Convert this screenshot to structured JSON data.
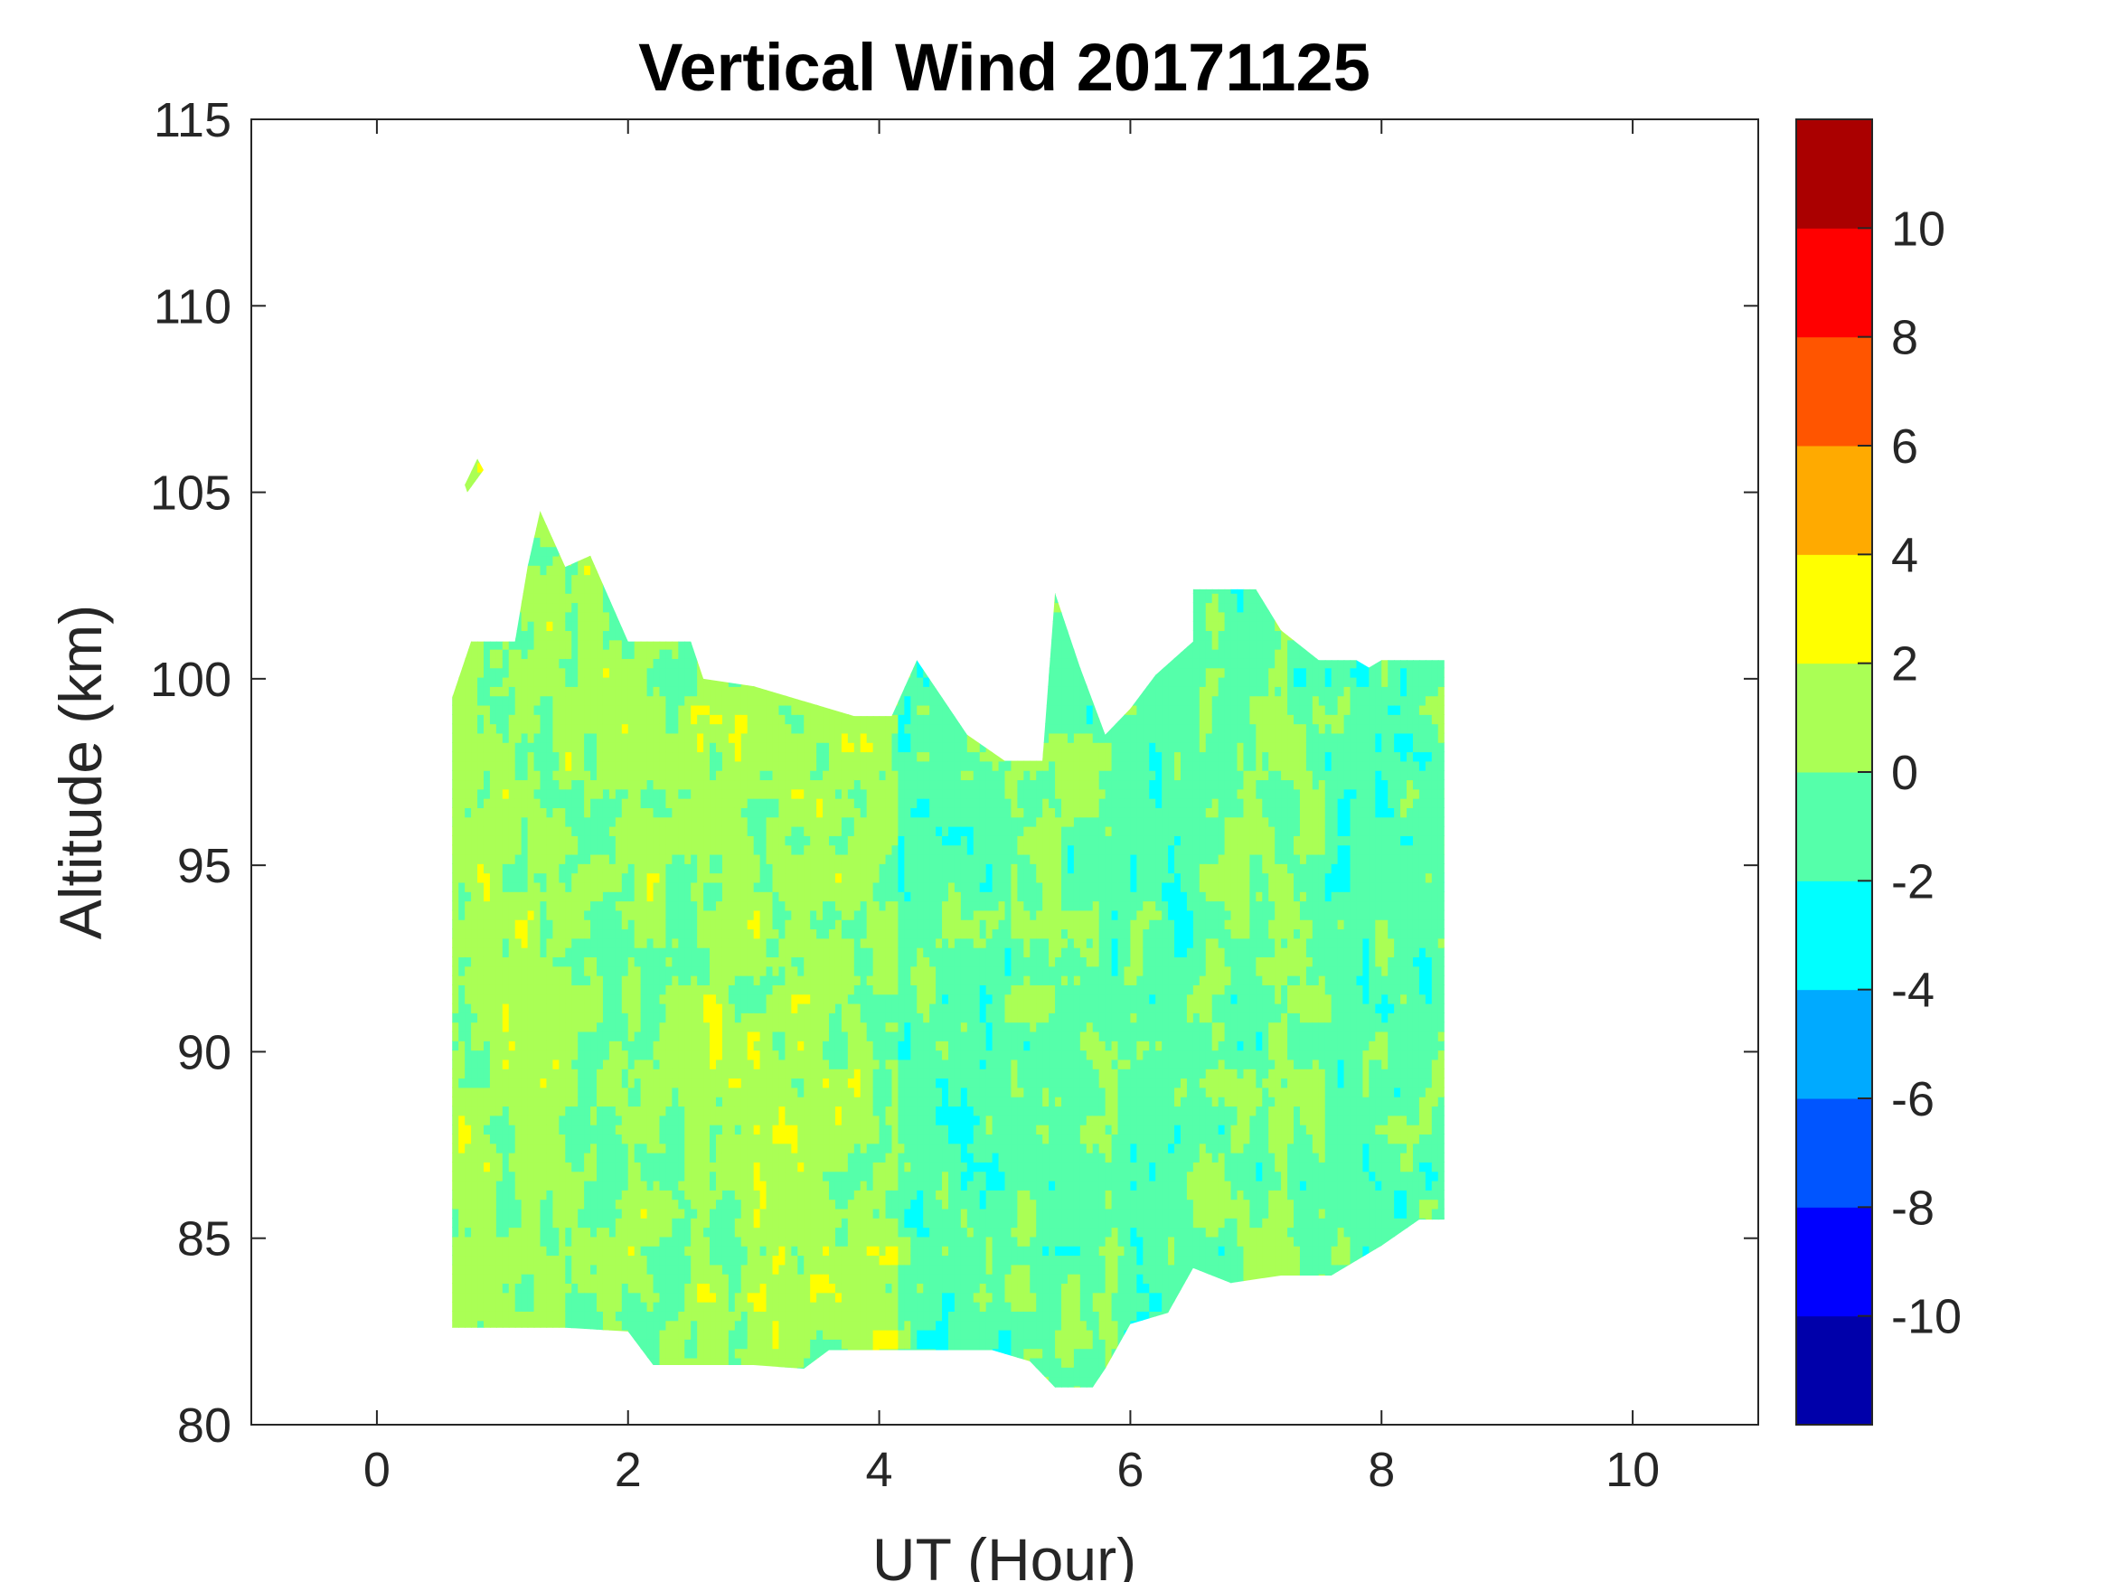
{
  "chart_data": {
    "type": "heatmap",
    "subtype": "filled-contour",
    "title": "Vertical Wind 20171125",
    "xlabel": "UT (Hour)",
    "ylabel": "Altitude (km)",
    "xlim": [
      -1,
      11
    ],
    "ylim": [
      80,
      115
    ],
    "xticks": [
      "0",
      "2",
      "4",
      "6",
      "8",
      "10"
    ],
    "xtick_values": [
      0,
      2,
      4,
      6,
      8,
      10
    ],
    "yticks": [
      "80",
      "85",
      "90",
      "95",
      "100",
      "105",
      "110",
      "115"
    ],
    "ytick_values": [
      80,
      85,
      90,
      95,
      100,
      105,
      110,
      115
    ],
    "colorbar": {
      "range": [
        -12,
        12
      ],
      "levels": [
        -12,
        -10,
        -8,
        -6,
        -4,
        -2,
        0,
        2,
        4,
        6,
        8,
        10,
        12
      ],
      "colors": [
        "#0000aa",
        "#0000ff",
        "#0055ff",
        "#00aaff",
        "#00ffff",
        "#55ffaa",
        "#aaff55",
        "#ffff00",
        "#ffaa00",
        "#ff5500",
        "#ff0000",
        "#aa0000"
      ],
      "tick_values": [
        -10,
        -8,
        -6,
        -4,
        -2,
        0,
        2,
        4,
        6,
        8,
        10
      ],
      "tick_labels": [
        "-10",
        "-8",
        "-6",
        "-4",
        "-2",
        "0",
        "2",
        "4",
        "6",
        "8",
        "10"
      ]
    },
    "data_coverage_outline": [
      [
        0.6,
        99.5
      ],
      [
        0.75,
        101
      ],
      [
        1.1,
        101
      ],
      [
        1.2,
        103
      ],
      [
        1.3,
        104.5
      ],
      [
        1.5,
        103
      ],
      [
        1.7,
        103.3
      ],
      [
        2.0,
        101
      ],
      [
        2.5,
        101
      ],
      [
        2.6,
        100
      ],
      [
        3.0,
        99.8
      ],
      [
        3.3,
        99.5
      ],
      [
        3.8,
        99
      ],
      [
        4.1,
        99
      ],
      [
        4.3,
        100.5
      ],
      [
        4.7,
        98.5
      ],
      [
        5.0,
        97.8
      ],
      [
        5.3,
        97.8
      ],
      [
        5.4,
        102.3
      ],
      [
        5.6,
        100.3
      ],
      [
        5.8,
        98.5
      ],
      [
        6.0,
        99.2
      ],
      [
        6.2,
        100.1
      ],
      [
        6.5,
        101
      ],
      [
        6.5,
        102.4
      ],
      [
        7.0,
        102.4
      ],
      [
        7.2,
        101.3
      ],
      [
        7.5,
        100.5
      ],
      [
        7.8,
        100.5
      ],
      [
        7.9,
        100.3
      ],
      [
        8.0,
        100.5
      ],
      [
        8.5,
        100.5
      ],
      [
        8.5,
        85.5
      ],
      [
        8.3,
        85.5
      ],
      [
        8.0,
        84.8
      ],
      [
        7.6,
        84.0
      ],
      [
        7.2,
        84.0
      ],
      [
        6.8,
        83.8
      ],
      [
        6.5,
        84.2
      ],
      [
        6.3,
        83.0
      ],
      [
        6.0,
        82.7
      ],
      [
        5.8,
        81.5
      ],
      [
        5.7,
        81.0
      ],
      [
        5.4,
        81.0
      ],
      [
        5.2,
        81.7
      ],
      [
        4.9,
        82.0
      ],
      [
        4.5,
        82.0
      ],
      [
        4.0,
        82.0
      ],
      [
        3.6,
        82.0
      ],
      [
        3.4,
        81.5
      ],
      [
        3.0,
        81.6
      ],
      [
        2.5,
        81.6
      ],
      [
        2.2,
        81.6
      ],
      [
        2.0,
        82.5
      ],
      [
        1.5,
        82.6
      ],
      [
        1.0,
        82.6
      ],
      [
        0.6,
        82.6
      ]
    ],
    "isolated_patch": [
      [
        0.7,
        105.2
      ],
      [
        0.8,
        105.9
      ],
      [
        0.85,
        105.6
      ],
      [
        0.72,
        105.0
      ]
    ],
    "dominant_wind_by_time": [
      {
        "from": 0.6,
        "to": 1.5,
        "value": 0.8
      },
      {
        "from": 1.5,
        "to": 2.5,
        "value": 0.3
      },
      {
        "from": 2.5,
        "to": 3.5,
        "value": 0.8
      },
      {
        "from": 3.5,
        "to": 4.1,
        "value": 0.6
      },
      {
        "from": 4.1,
        "to": 5.0,
        "value": -1.0
      },
      {
        "from": 5.0,
        "to": 5.8,
        "value": -0.3
      },
      {
        "from": 5.8,
        "to": 6.5,
        "value": -0.9
      },
      {
        "from": 6.5,
        "to": 7.5,
        "value": -0.4
      },
      {
        "from": 7.5,
        "to": 8.5,
        "value": -1.0
      }
    ]
  }
}
